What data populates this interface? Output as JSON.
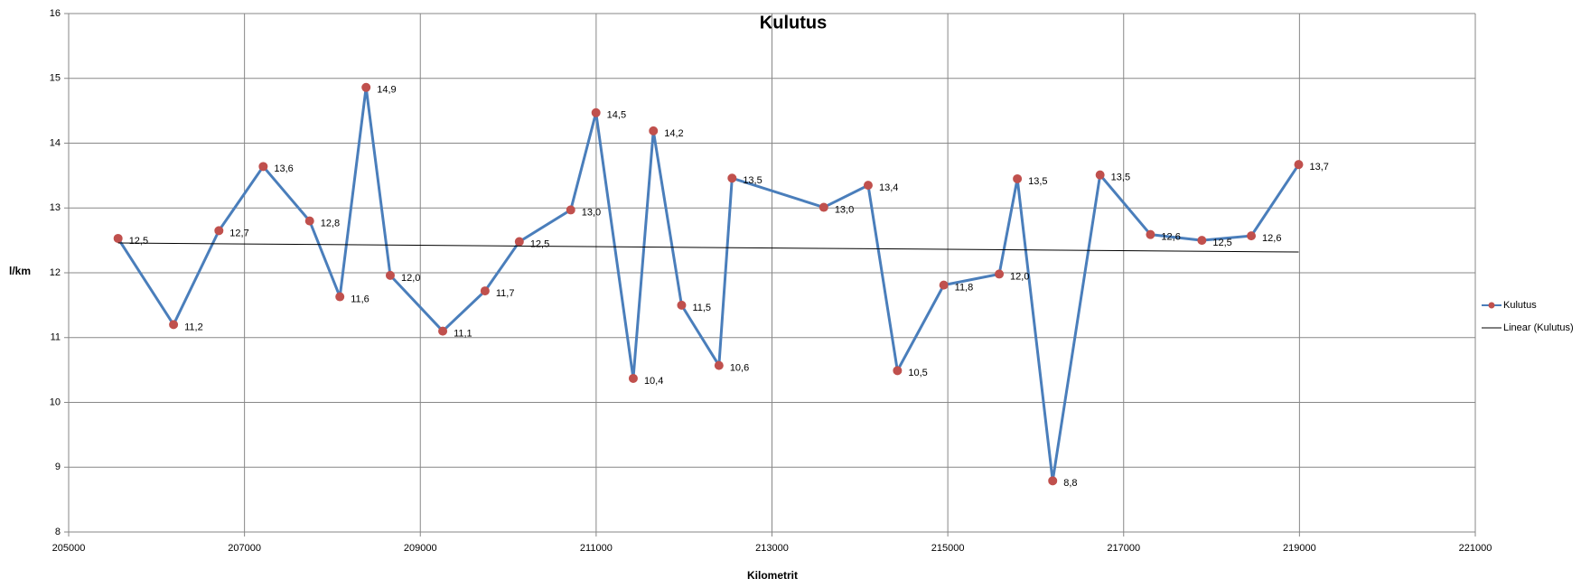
{
  "chart_data": {
    "type": "line",
    "title": "Kulutus",
    "x_label": "Kilometrit",
    "y_label": "l/km",
    "xlim": [
      205000,
      221000
    ],
    "xticks": [
      205000,
      207000,
      209000,
      211000,
      213000,
      215000,
      217000,
      219000,
      221000
    ],
    "ylim": [
      8,
      16
    ],
    "yticks": [
      8,
      9,
      10,
      11,
      12,
      13,
      14,
      15,
      16
    ],
    "grid": true,
    "legend": "right",
    "series": [
      {
        "name": "Kulutus",
        "color": "#4a7ebb",
        "marker_color": "#c0504d",
        "x": [
          205562,
          206193,
          206709,
          207213,
          207741,
          208085,
          208383,
          208658,
          209255,
          209736,
          210126,
          210711,
          210998,
          211422,
          211651,
          211972,
          212397,
          212546,
          213589,
          214094,
          214427,
          214954,
          215585,
          215791,
          216193,
          216732,
          217305,
          217890,
          218452,
          218991
        ],
        "values": [
          12.53,
          11.2,
          12.65,
          13.64,
          12.8,
          11.63,
          14.86,
          11.96,
          11.1,
          11.72,
          12.48,
          12.97,
          14.47,
          10.37,
          14.19,
          11.5,
          10.57,
          13.46,
          13.01,
          13.35,
          10.49,
          11.81,
          11.98,
          13.45,
          8.79,
          13.51,
          12.59,
          12.5,
          12.57,
          13.67
        ],
        "value_labels": [
          "12,5",
          "11,2",
          "12,7",
          "13,6",
          "12,8",
          "11,6",
          "14,9",
          "12,0",
          "11,1",
          "11,7",
          "12,5",
          "13,0",
          "14,5",
          "10,4",
          "14,2",
          "11,5",
          "10,6",
          "13,5",
          "13,0",
          "13,4",
          "10,5",
          "11,8",
          "12,0",
          "13,5",
          "8,8",
          "13,5",
          "12,6",
          "12,5",
          "12,6",
          "13,7"
        ]
      },
      {
        "name": "Linear (Kulutus)",
        "color": "#000000",
        "trendline": true,
        "x": [
          205562,
          218991
        ],
        "values": [
          12.46,
          12.32
        ]
      }
    ]
  }
}
